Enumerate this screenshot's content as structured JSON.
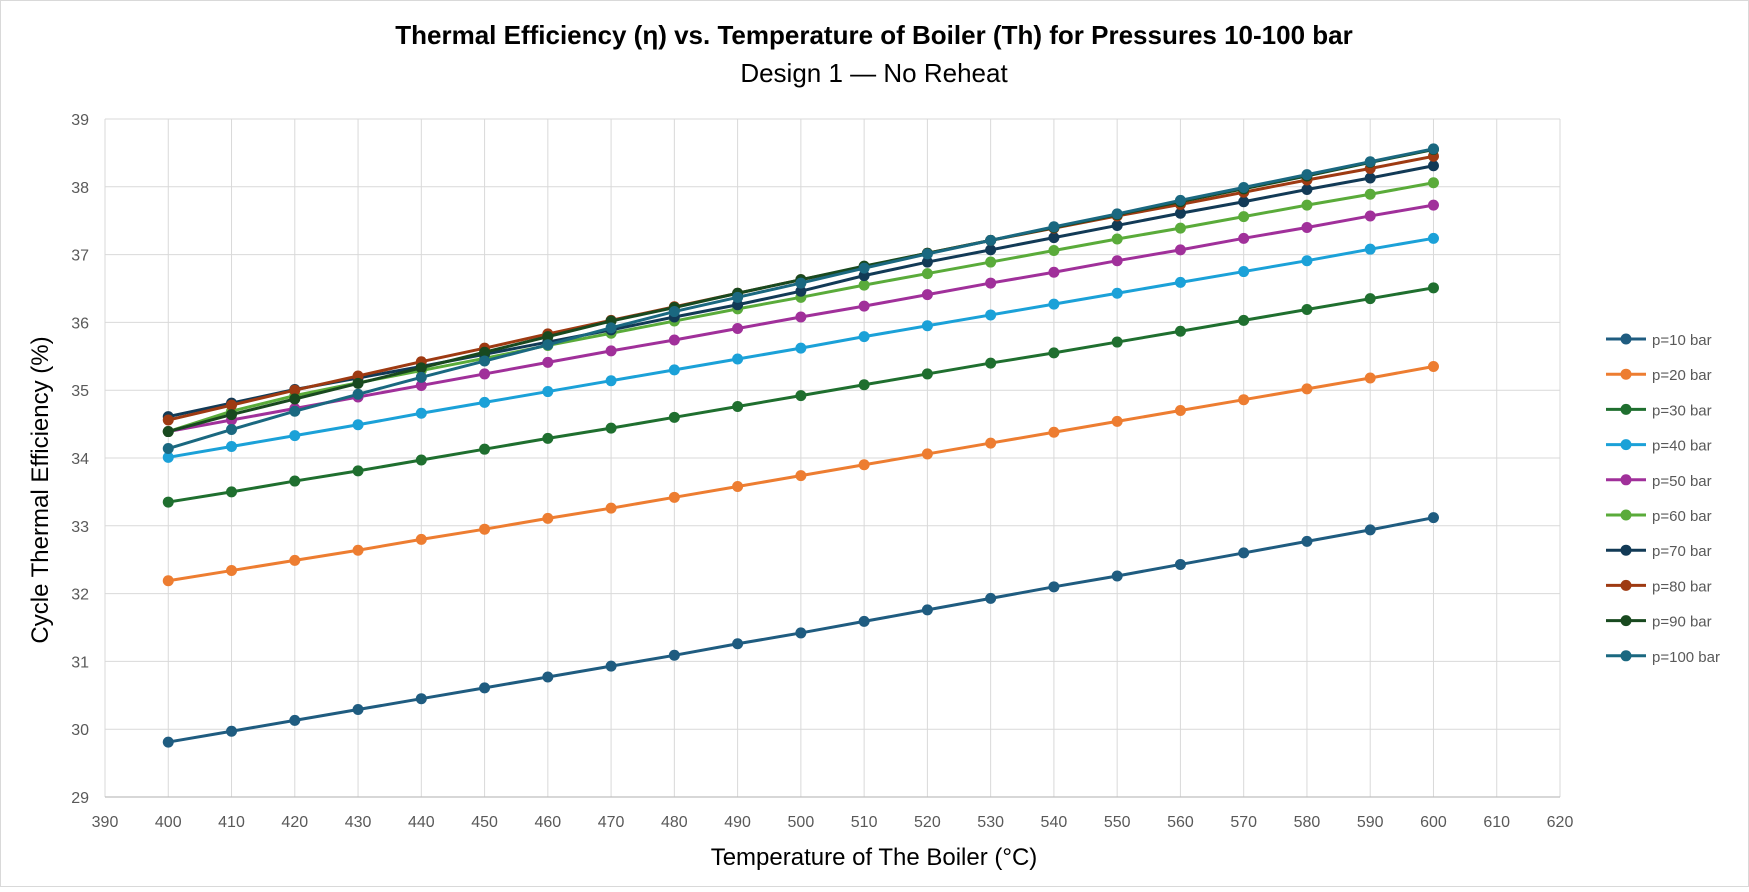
{
  "chart_data": {
    "type": "line",
    "title": "Thermal Efficiency (η) vs. Temperature of Boiler (Th) for Pressures  10-100 bar",
    "subtitle": "Design 1 — No Reheat",
    "xlabel": "Temperature of The Boiler (°C)",
    "ylabel": "Cycle Thermal Efficiency (%)",
    "xlim": [
      390,
      620
    ],
    "ylim": [
      29,
      39
    ],
    "xticks": [
      390,
      400,
      410,
      420,
      430,
      440,
      450,
      460,
      470,
      480,
      490,
      500,
      510,
      520,
      530,
      540,
      550,
      560,
      570,
      580,
      590,
      600,
      610,
      620
    ],
    "yticks": [
      29,
      30,
      31,
      32,
      33,
      34,
      35,
      36,
      37,
      38,
      39
    ],
    "grid": true,
    "legend_position": "right",
    "x": [
      400,
      410,
      420,
      430,
      440,
      450,
      460,
      470,
      480,
      490,
      500,
      510,
      520,
      530,
      540,
      550,
      560,
      570,
      580,
      590,
      600
    ],
    "series": [
      {
        "name": "p=10 bar",
        "color": "#1f5c80",
        "values": [
          29.81,
          29.97,
          30.13,
          30.29,
          30.45,
          30.61,
          30.77,
          30.93,
          31.09,
          31.26,
          31.42,
          31.59,
          31.76,
          31.93,
          32.1,
          32.26,
          32.43,
          32.6,
          32.77,
          32.94,
          33.12
        ]
      },
      {
        "name": "p=20 bar",
        "color": "#ed7d31",
        "values": [
          32.19,
          32.34,
          32.49,
          32.64,
          32.8,
          32.95,
          33.11,
          33.26,
          33.42,
          33.58,
          33.74,
          33.9,
          34.06,
          34.22,
          34.38,
          34.54,
          34.7,
          34.86,
          35.02,
          35.18,
          35.35
        ]
      },
      {
        "name": "p=30 bar",
        "color": "#1f6f2f",
        "values": [
          33.35,
          33.5,
          33.66,
          33.81,
          33.97,
          34.13,
          34.29,
          34.44,
          34.6,
          34.76,
          34.92,
          35.08,
          35.24,
          35.4,
          35.55,
          35.71,
          35.87,
          36.03,
          36.19,
          36.35,
          36.51
        ]
      },
      {
        "name": "p=40 bar",
        "color": "#1ba1d8",
        "values": [
          34.01,
          34.17,
          34.33,
          34.49,
          34.66,
          34.82,
          34.98,
          35.14,
          35.3,
          35.46,
          35.62,
          35.79,
          35.95,
          36.11,
          36.27,
          36.43,
          36.59,
          36.75,
          36.91,
          37.08,
          37.24
        ]
      },
      {
        "name": "p=50 bar",
        "color": "#a0309a",
        "values": [
          34.39,
          34.56,
          34.73,
          34.9,
          35.07,
          35.24,
          35.41,
          35.58,
          35.74,
          35.91,
          36.08,
          36.24,
          36.41,
          36.58,
          36.74,
          36.91,
          37.07,
          37.24,
          37.4,
          37.57,
          37.73
        ]
      },
      {
        "name": "p=60 bar",
        "color": "#5aab3a",
        "values": [
          34.39,
          34.69,
          34.92,
          35.11,
          35.29,
          35.47,
          35.66,
          35.84,
          36.02,
          36.2,
          36.37,
          36.55,
          36.72,
          36.89,
          37.06,
          37.23,
          37.39,
          37.56,
          37.73,
          37.89,
          38.06
        ]
      },
      {
        "name": "p=70 bar",
        "color": "#123a56",
        "values": [
          34.61,
          34.81,
          35.01,
          35.18,
          35.35,
          35.53,
          35.71,
          35.89,
          36.08,
          36.26,
          36.46,
          36.69,
          36.89,
          37.07,
          37.25,
          37.43,
          37.61,
          37.78,
          37.96,
          38.13,
          38.31
        ]
      },
      {
        "name": "p=80 bar",
        "color": "#9e3a12",
        "values": [
          34.56,
          34.78,
          35.0,
          35.21,
          35.42,
          35.62,
          35.83,
          36.03,
          36.23,
          36.43,
          36.63,
          36.82,
          37.02,
          37.21,
          37.39,
          37.57,
          37.74,
          37.92,
          38.1,
          38.27,
          38.45
        ]
      },
      {
        "name": "p=90 bar",
        "color": "#18491f",
        "values": [
          34.39,
          34.64,
          34.87,
          35.1,
          35.33,
          35.56,
          35.79,
          36.02,
          36.22,
          36.43,
          36.63,
          36.83,
          37.02,
          37.21,
          37.4,
          37.59,
          37.78,
          37.97,
          38.16,
          38.36,
          38.55
        ]
      },
      {
        "name": "p=100 bar",
        "color": "#1a6880",
        "values": [
          34.14,
          34.42,
          34.69,
          34.94,
          35.19,
          35.43,
          35.67,
          35.92,
          36.16,
          36.37,
          36.58,
          36.8,
          37.01,
          37.21,
          37.41,
          37.6,
          37.8,
          37.99,
          38.18,
          38.37,
          38.56
        ]
      }
    ]
  }
}
